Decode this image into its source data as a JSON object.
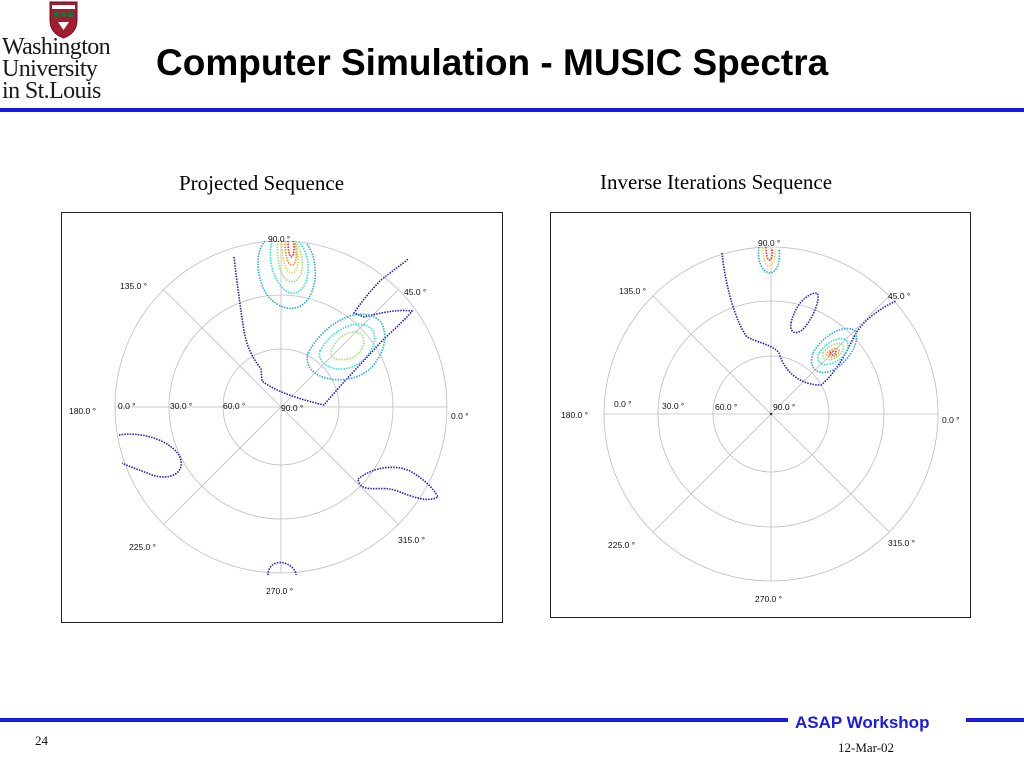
{
  "header": {
    "logo_text": [
      "Washington",
      "University",
      "in St.Louis"
    ],
    "title": "Computer Simulation - MUSIC Spectra"
  },
  "plots": [
    {
      "caption": "Projected Sequence",
      "angle_labels": [
        "0.0 °",
        "45.0 °",
        "90.0 °",
        "135.0 °",
        "180.0 °",
        "225.0 °",
        "270.0 °",
        "315.0 °"
      ],
      "radial_labels": [
        "0.0 °",
        "30.0 °",
        "60.0 °",
        "90.0 °"
      ]
    },
    {
      "caption": "Inverse Iterations Sequence",
      "angle_labels": [
        "0.0 °",
        "45.0 °",
        "90.0 °",
        "135.0 °",
        "180.0 °",
        "225.0 °",
        "270.0 °",
        "315.0 °"
      ],
      "radial_labels": [
        "0.0 °",
        "30.0 °",
        "60.0 °",
        "90.0 °"
      ]
    }
  ],
  "footer": {
    "slide_number": "24",
    "workshop": "ASAP Workshop",
    "date": "12-Mar-02"
  },
  "colors": {
    "accent_blue": "#1a1ae6",
    "contour_levels": [
      "#2323c8",
      "#2aa8e0",
      "#2ee0d8",
      "#9ae07a",
      "#f0d23a",
      "#f08a30",
      "#d8342c"
    ]
  }
}
